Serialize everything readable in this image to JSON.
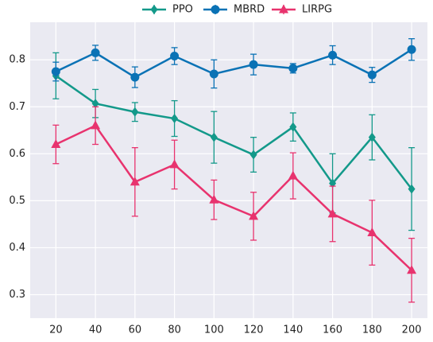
{
  "chart_data": {
    "type": "line",
    "x": [
      20,
      40,
      60,
      80,
      100,
      120,
      140,
      160,
      180,
      200
    ],
    "xlim": [
      7,
      208
    ],
    "xticks": [
      20,
      40,
      60,
      80,
      100,
      120,
      140,
      160,
      180,
      200
    ],
    "ylim": [
      0.25,
      0.88
    ],
    "yticks": [
      0.3,
      0.4,
      0.5,
      0.6,
      0.7,
      0.8
    ],
    "grid": true,
    "legend": "top",
    "series": [
      {
        "name": "PPO",
        "color": "#13998a",
        "marker": "diamond",
        "values": [
          0.766,
          0.707,
          0.689,
          0.675,
          0.635,
          0.598,
          0.657,
          0.537,
          0.635,
          0.525
        ],
        "errors": [
          0.049,
          0.03,
          0.02,
          0.038,
          0.055,
          0.037,
          0.03,
          0.063,
          0.048,
          0.088
        ]
      },
      {
        "name": "MBRD",
        "color": "#0a72b5",
        "marker": "circle",
        "values": [
          0.775,
          0.815,
          0.763,
          0.808,
          0.77,
          0.79,
          0.782,
          0.81,
          0.768,
          0.822
        ],
        "errors": [
          0.02,
          0.016,
          0.022,
          0.018,
          0.03,
          0.022,
          0.01,
          0.02,
          0.016,
          0.023
        ]
      },
      {
        "name": "LIRPG",
        "color": "#e8336e",
        "marker": "triangle",
        "values": [
          0.62,
          0.66,
          0.54,
          0.577,
          0.502,
          0.467,
          0.553,
          0.472,
          0.432,
          0.352
        ],
        "errors": [
          0.041,
          0.04,
          0.073,
          0.052,
          0.042,
          0.051,
          0.049,
          0.059,
          0.069,
          0.068
        ]
      }
    ]
  }
}
